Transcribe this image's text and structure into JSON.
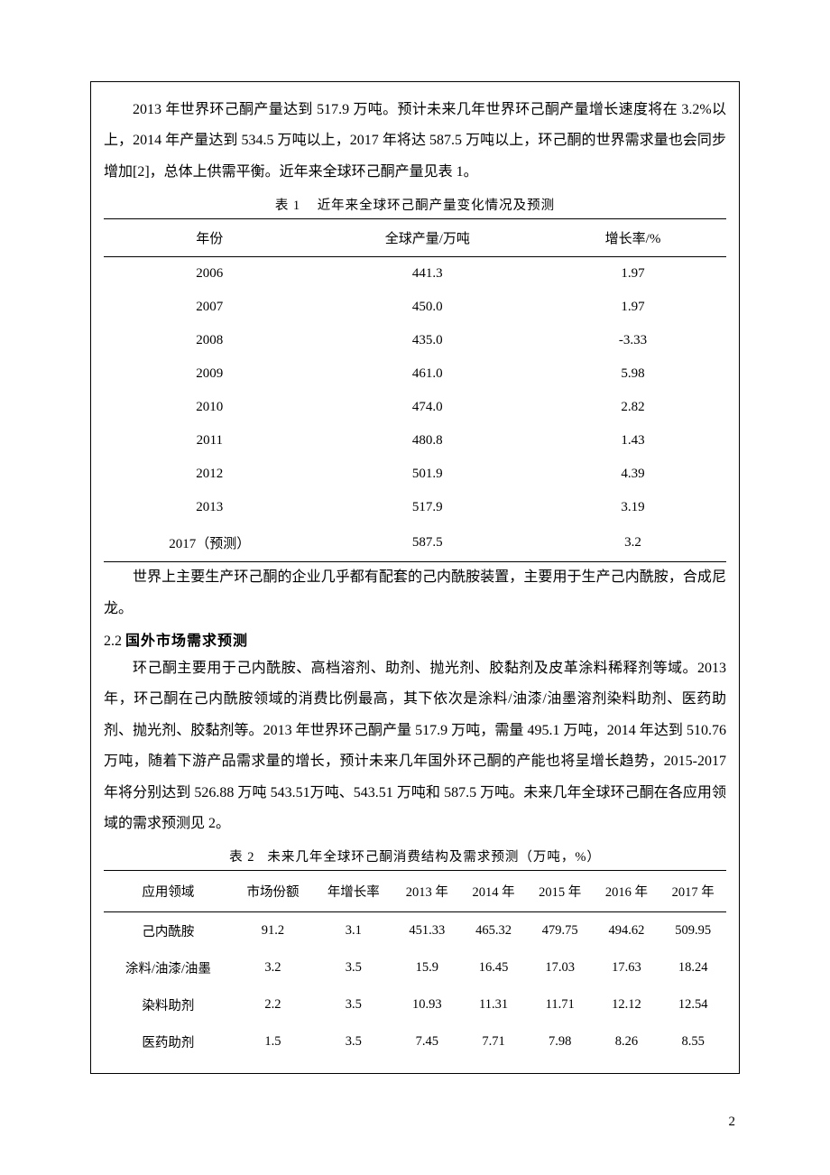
{
  "para1": "2013 年世界环己酮产量达到 517.9 万吨。预计未来几年世界环己酮产量增长速度将在 3.2%以上，2014 年产量达到 534.5 万吨以上，2017 年将达 587.5 万吨以上，环己酮的世界需求量也会同步增加[2]，总体上供需平衡。近年来全球环己酮产量见表 1。",
  "table1": {
    "caption_prefix": "表 1",
    "caption_text": "近年来全球环己酮产量变化情况及预测",
    "columns": [
      "年份",
      "全球产量/万吨",
      "增长率/%"
    ],
    "rows": [
      [
        "2006",
        "441.3",
        "1.97"
      ],
      [
        "2007",
        "450.0",
        "1.97"
      ],
      [
        "2008",
        "435.0",
        "-3.33"
      ],
      [
        "2009",
        "461.0",
        "5.98"
      ],
      [
        "2010",
        "474.0",
        "2.82"
      ],
      [
        "2011",
        "480.8",
        "1.43"
      ],
      [
        "2012",
        "501.9",
        "4.39"
      ],
      [
        "2013",
        "517.9",
        "3.19"
      ],
      [
        "2017（预测）",
        "587.5",
        "3.2"
      ]
    ],
    "col_classes": [
      "col-year",
      "col-prod",
      "col-rate"
    ]
  },
  "para2": "世界上主要生产环己酮的企业几乎都有配套的己内酰胺装置，主要用于生产己内酰胺，合成尼龙。",
  "heading22_num": "2.2",
  "heading22_txt": "国外市场需求预测",
  "para3": "环己酮主要用于己内酰胺、高档溶剂、助剂、抛光剂、胶黏剂及皮革涂料稀释剂等域。2013 年，环己酮在己内酰胺领域的消费比例最高，其下依次是涂料/油漆/油墨溶剂染料助剂、医药助剂、抛光剂、胶黏剂等。2013 年世界环己酮产量 517.9 万吨，需量 495.1 万吨，2014 年达到 510.76 万吨，随着下游产品需求量的增长，预计未来几年国外环己酮的产能也将呈增长趋势，2015-2017 年将分别达到 526.88 万吨 543.51万吨、543.51 万吨和 587.5 万吨。未来几年全球环己酮在各应用领域的需求预测见 2。",
  "table2": {
    "caption_prefix": "表 2",
    "caption_text": "未来几年全球环己酮消费结构及需求预测（万吨，%）",
    "columns": [
      "应用领域",
      "市场份额",
      "年增长率",
      "2013 年",
      "2014 年",
      "2015 年",
      "2016 年",
      "2017 年"
    ],
    "rows": [
      [
        "己内酰胺",
        "91.2",
        "3.1",
        "451.33",
        "465.32",
        "479.75",
        "494.62",
        "509.95"
      ],
      [
        "涂料/油漆/油墨",
        "3.2",
        "3.5",
        "15.9",
        "16.45",
        "17.03",
        "17.63",
        "18.24"
      ],
      [
        "染料助剂",
        "2.2",
        "3.5",
        "10.93",
        "11.31",
        "11.71",
        "12.12",
        "12.54"
      ],
      [
        "医药助剂",
        "1.5",
        "3.5",
        "7.45",
        "7.71",
        "7.98",
        "8.26",
        "8.55"
      ]
    ]
  },
  "page_number": "2"
}
